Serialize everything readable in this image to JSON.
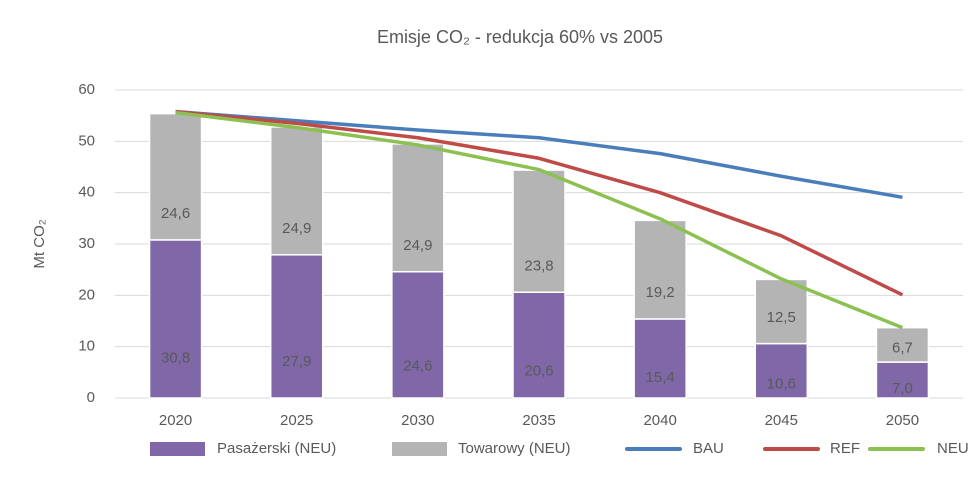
{
  "chart_data": {
    "type": "bar",
    "stacked": true,
    "title": "Emisje CO₂ - redukcja 60% vs 2005",
    "y_label": "Mt CO₂",
    "categories": [
      "2020",
      "2025",
      "2030",
      "2035",
      "2040",
      "2045",
      "2050"
    ],
    "series": [
      {
        "name": "Pasażerski (NEU)",
        "type": "bar",
        "color": "#7f67a8",
        "label_color": "#ffffff",
        "values": [
          30.8,
          27.9,
          24.6,
          20.6,
          15.4,
          10.6,
          7.0
        ],
        "value_labels": [
          "30,8",
          "27,9",
          "24,6",
          "20,6",
          "15,4",
          "10,6",
          "7,0"
        ]
      },
      {
        "name": "Towarowy (NEU)",
        "type": "bar",
        "color": "#b4b4b4",
        "label_color": "#404040",
        "values": [
          24.6,
          24.9,
          24.9,
          23.8,
          19.2,
          12.5,
          6.7
        ],
        "value_labels": [
          "24,6",
          "24,9",
          "24,9",
          "23,8",
          "19,2",
          "12,5",
          "6,7"
        ]
      },
      {
        "name": "BAU",
        "type": "line",
        "color": "#4a7ebb",
        "values": [
          55.8,
          54,
          52.2,
          50.7,
          47.6,
          43.2,
          39.1
        ]
      },
      {
        "name": "REF",
        "type": "line",
        "color": "#be4b48",
        "values": [
          55.8,
          53.5,
          50.7,
          46.7,
          40,
          31.6,
          20.1
        ]
      },
      {
        "name": "NEU",
        "type": "line",
        "color": "#8cc152",
        "values": [
          55.6,
          52.7,
          49.3,
          44.5,
          34.9,
          23.2,
          13.7
        ]
      }
    ],
    "ylim": [
      0,
      60
    ],
    "yticks": [
      0,
      10,
      20,
      30,
      40,
      50,
      60
    ],
    "grid": true,
    "legend": "bottom"
  }
}
